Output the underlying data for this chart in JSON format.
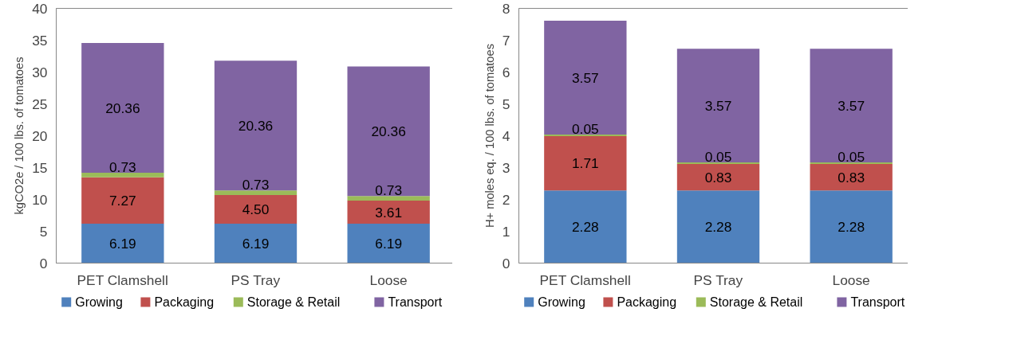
{
  "chart_data": [
    {
      "type": "bar",
      "stacked": true,
      "ylabel": "kgCO2e / 100 lbs. of tomatoes",
      "categories": [
        "PET Clamshell",
        "PS Tray",
        "Loose"
      ],
      "ylim": [
        0,
        40
      ],
      "yticks": [
        0,
        5,
        10,
        15,
        20,
        25,
        30,
        35,
        40
      ],
      "grid": false,
      "legend": "bottom",
      "series": [
        {
          "name": "Growing",
          "color": "#4f81bd",
          "values": [
            6.19,
            6.19,
            6.19
          ],
          "value_labels": [
            "6.19",
            "6.19",
            "6.19"
          ]
        },
        {
          "name": "Packaging",
          "color": "#c0504d",
          "values": [
            7.27,
            4.5,
            3.61
          ],
          "value_labels": [
            "7.27",
            "4.50",
            "3.61"
          ]
        },
        {
          "name": "Storage & Retail",
          "color": "#9bbb59",
          "values": [
            0.73,
            0.73,
            0.73
          ],
          "value_labels": [
            "0.73",
            "0.73",
            "0.73"
          ]
        },
        {
          "name": "Transport",
          "color": "#8064a2",
          "values": [
            20.36,
            20.36,
            20.36
          ],
          "value_labels": [
            "20.36",
            "20.36",
            "20.36"
          ]
        }
      ]
    },
    {
      "type": "bar",
      "stacked": true,
      "ylabel": "H+ moles eq. / 100 lbs. of tomatoes",
      "categories": [
        "PET Clamshell",
        "PS Tray",
        "Loose"
      ],
      "ylim": [
        0,
        8
      ],
      "yticks": [
        0,
        1,
        2,
        3,
        4,
        5,
        6,
        7,
        8
      ],
      "grid": false,
      "legend": "bottom",
      "series": [
        {
          "name": "Growing",
          "color": "#4f81bd",
          "values": [
            2.28,
            2.28,
            2.28
          ],
          "value_labels": [
            "2.28",
            "2.28",
            "2.28"
          ]
        },
        {
          "name": "Packaging",
          "color": "#c0504d",
          "values": [
            1.71,
            0.83,
            0.83
          ],
          "value_labels": [
            "1.71",
            "0.83",
            "0.83"
          ]
        },
        {
          "name": "Storage & Retail",
          "color": "#9bbb59",
          "values": [
            0.05,
            0.05,
            0.05
          ],
          "value_labels": [
            "0.05",
            "0.05",
            "0.05"
          ]
        },
        {
          "name": "Transport",
          "color": "#8064a2",
          "values": [
            3.57,
            3.57,
            3.57
          ],
          "value_labels": [
            "3.57",
            "3.57",
            "3.57"
          ]
        }
      ]
    }
  ]
}
